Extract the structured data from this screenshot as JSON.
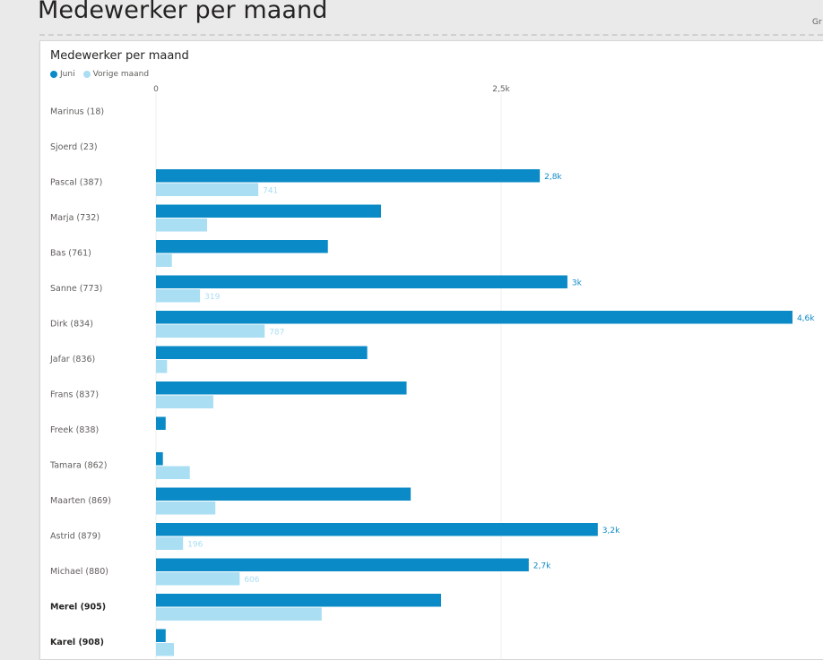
{
  "page": {
    "title": "Medewerker per maand",
    "top_right_text": "Gr"
  },
  "chart_data": {
    "type": "bar",
    "orientation": "horizontal",
    "title": "Medewerker per maand",
    "legend_position": "top-left",
    "xlim": [
      0,
      4600
    ],
    "x_ticks": [
      {
        "value": 0,
        "label": "0"
      },
      {
        "value": 2500,
        "label": "2,5k"
      }
    ],
    "grid": true,
    "categories": [
      "Marinus (18)",
      "Sjoerd (23)",
      "Pascal (387)",
      "Marja (732)",
      "Bas (761)",
      "Sanne (773)",
      "Dirk (834)",
      "Jafar (836)",
      "Frans (837)",
      "Freek (838)",
      "Tamara (862)",
      "Maarten (869)",
      "Astrid (879)",
      "Michael (880)",
      "Merel (905)",
      "Karel (908)"
    ],
    "bold_categories": [
      "Merel (905)",
      "Karel (908)"
    ],
    "series": [
      {
        "name": "Juni",
        "color": "#0a8ac6",
        "label_color": "#0a8ac6",
        "values": [
          0,
          2780,
          1630,
          1245,
          2980,
          4610,
          1530,
          1815,
          70,
          50,
          1845,
          3200,
          2700,
          2065,
          70,
          0
        ],
        "data_labels": [
          "",
          "2,8k",
          "",
          "",
          "3k",
          "4,6k",
          "",
          "",
          "",
          "",
          "",
          "3,2k",
          "2,7k",
          "",
          "",
          ""
        ]
      },
      {
        "name": "Vorige maand",
        "color": "#a9def3",
        "label_color": "#a9def3",
        "values": [
          0,
          741,
          370,
          115,
          319,
          787,
          80,
          415,
          0,
          245,
          430,
          196,
          606,
          1200,
          130,
          75
        ],
        "data_labels": [
          "",
          "741",
          "",
          "",
          "319",
          "787",
          "",
          "",
          "",
          "",
          "",
          "196",
          "606",
          "",
          "",
          ""
        ]
      }
    ]
  }
}
